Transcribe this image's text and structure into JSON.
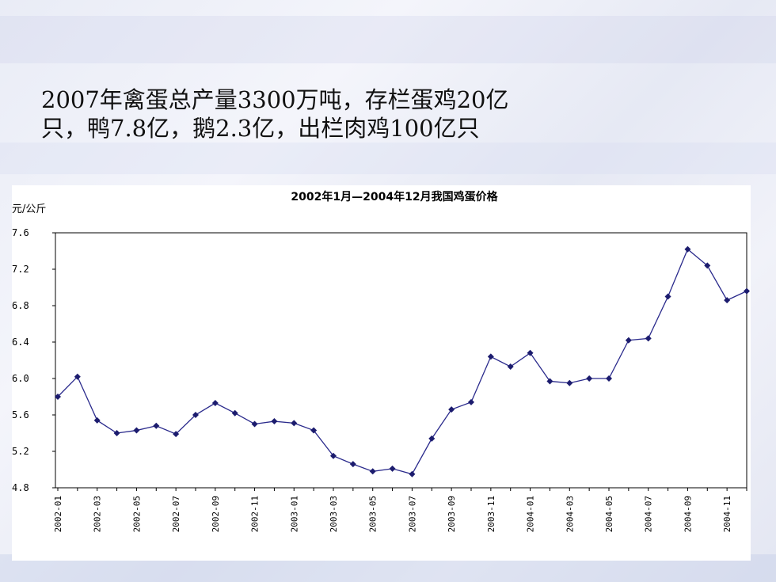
{
  "headline": {
    "line1": "2007年禽蛋总产量3300万吨，存栏蛋鸡20亿",
    "line2": "只，鸭7.8亿，鹅2.3亿，出栏肉鸡100亿只"
  },
  "chart_data": {
    "type": "line",
    "title": "2002年1月—2004年12月我国鸡蛋价格",
    "ylabel": "元/公斤",
    "xlabel": "",
    "ylim": [
      4.8,
      7.6
    ],
    "yticks": [
      "7.6",
      "7.2",
      "6.8",
      "6.4",
      "6.0",
      "5.6",
      "5.2",
      "4.8"
    ],
    "grid": false,
    "x": [
      "2002-01",
      "2002-02",
      "2002-03",
      "2002-04",
      "2002-05",
      "2002-06",
      "2002-07",
      "2002-08",
      "2002-09",
      "2002-10",
      "2002-11",
      "2002-12",
      "2003-01",
      "2003-02",
      "2003-03",
      "2003-04",
      "2003-05",
      "2003-06",
      "2003-07",
      "2003-08",
      "2003-09",
      "2003-10",
      "2003-11",
      "2003-12",
      "2004-01",
      "2004-02",
      "2004-03",
      "2004-04",
      "2004-05",
      "2004-06",
      "2004-07",
      "2004-08",
      "2004-09",
      "2004-10",
      "2004-11",
      "2004-12"
    ],
    "xtick_labels": [
      "2002-01",
      "2002-03",
      "2002-05",
      "2002-07",
      "2002-09",
      "2002-11",
      "2003-01",
      "2003-03",
      "2003-05",
      "2003-07",
      "2003-09",
      "2003-11",
      "2004-01",
      "2004-03",
      "2004-05",
      "2004-07",
      "2004-09",
      "2004-11"
    ],
    "series": [
      {
        "values": [
          5.8,
          6.02,
          5.54,
          5.4,
          5.43,
          5.48,
          5.39,
          5.6,
          5.73,
          5.62,
          5.5,
          5.53,
          5.51,
          5.43,
          5.15,
          5.06,
          4.98,
          5.01,
          4.95,
          5.34,
          5.66,
          5.74,
          6.24,
          6.13,
          6.28,
          5.97,
          5.95,
          6.0,
          6.0,
          6.42,
          6.44,
          6.9,
          7.42,
          7.24,
          6.86,
          6.96
        ],
        "color": "#2a2a8c"
      }
    ]
  }
}
